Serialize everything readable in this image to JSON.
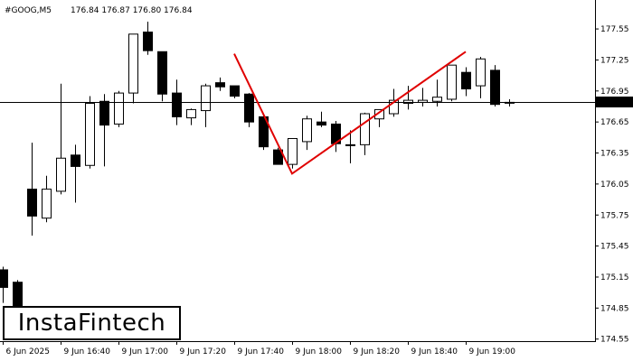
{
  "header": {
    "symbol": "#GOOG,M5",
    "ohlc": "176.84 176.87 176.80 176.84"
  },
  "logo": {
    "text": "InstaFintech"
  },
  "price_marker": "176.84",
  "colors": {
    "pattern_line": "#e00000",
    "bull_fill": "#ffffff",
    "bear_fill": "#000000",
    "candle_stroke": "#000000",
    "marker_bg": "#000000",
    "marker_text": "#ffffff"
  },
  "chart_data": {
    "type": "candlestick",
    "ylim": [
      174.53,
      177.83
    ],
    "y_ticks": [
      "177.55",
      "177.25",
      "176.95",
      "176.65",
      "176.35",
      "176.05",
      "175.75",
      "175.45",
      "175.15",
      "174.85",
      "174.55"
    ],
    "x_tick_labels": [
      "6 Jun 2025",
      "9 Jun 16:40",
      "9 Jun 17:00",
      "9 Jun 17:20",
      "9 Jun 17:40",
      "9 Jun 18:00",
      "9 Jun 18:20",
      "9 Jun 18:40",
      "9 Jun 19:00"
    ],
    "current_price": 176.84,
    "candles": [
      {
        "o": 175.22,
        "h": 175.25,
        "l": 174.9,
        "c": 175.05
      },
      {
        "o": 175.1,
        "h": 175.12,
        "l": 174.78,
        "c": 174.82
      },
      {
        "o": 176.0,
        "h": 176.45,
        "l": 175.55,
        "c": 175.74
      },
      {
        "o": 175.72,
        "h": 176.13,
        "l": 175.68,
        "c": 176.0
      },
      {
        "o": 175.98,
        "h": 177.02,
        "l": 175.95,
        "c": 176.3
      },
      {
        "o": 176.33,
        "h": 176.43,
        "l": 175.87,
        "c": 176.22
      },
      {
        "o": 176.23,
        "h": 176.9,
        "l": 176.2,
        "c": 176.83
      },
      {
        "o": 176.85,
        "h": 176.92,
        "l": 176.22,
        "c": 176.62
      },
      {
        "o": 176.63,
        "h": 176.95,
        "l": 176.6,
        "c": 176.93
      },
      {
        "o": 176.93,
        "h": 177.5,
        "l": 176.83,
        "c": 177.5
      },
      {
        "o": 177.52,
        "h": 177.62,
        "l": 177.3,
        "c": 177.34
      },
      {
        "o": 177.33,
        "h": 177.33,
        "l": 176.85,
        "c": 176.92
      },
      {
        "o": 176.93,
        "h": 177.06,
        "l": 176.62,
        "c": 176.7
      },
      {
        "o": 176.69,
        "h": 176.78,
        "l": 176.62,
        "c": 176.77
      },
      {
        "o": 176.76,
        "h": 177.02,
        "l": 176.6,
        "c": 177.0
      },
      {
        "o": 177.03,
        "h": 177.08,
        "l": 176.95,
        "c": 176.99
      },
      {
        "o": 177.0,
        "h": 177.0,
        "l": 176.88,
        "c": 176.9
      },
      {
        "o": 176.92,
        "h": 176.93,
        "l": 176.6,
        "c": 176.65
      },
      {
        "o": 176.7,
        "h": 176.73,
        "l": 176.38,
        "c": 176.41
      },
      {
        "o": 176.38,
        "h": 176.4,
        "l": 176.24,
        "c": 176.24
      },
      {
        "o": 176.24,
        "h": 176.49,
        "l": 176.2,
        "c": 176.49
      },
      {
        "o": 176.46,
        "h": 176.71,
        "l": 176.38,
        "c": 176.68
      },
      {
        "o": 176.65,
        "h": 176.75,
        "l": 176.6,
        "c": 176.62
      },
      {
        "o": 176.63,
        "h": 176.66,
        "l": 176.36,
        "c": 176.44
      },
      {
        "o": 176.43,
        "h": 176.57,
        "l": 176.25,
        "c": 176.43
      },
      {
        "o": 176.43,
        "h": 176.74,
        "l": 176.33,
        "c": 176.73
      },
      {
        "o": 176.68,
        "h": 176.77,
        "l": 176.6,
        "c": 176.77
      },
      {
        "o": 176.73,
        "h": 176.97,
        "l": 176.7,
        "c": 176.86
      },
      {
        "o": 176.83,
        "h": 177.0,
        "l": 176.77,
        "c": 176.86
      },
      {
        "o": 176.84,
        "h": 176.98,
        "l": 176.8,
        "c": 176.86
      },
      {
        "o": 176.85,
        "h": 177.06,
        "l": 176.8,
        "c": 176.89
      },
      {
        "o": 176.87,
        "h": 177.2,
        "l": 176.85,
        "c": 177.2
      },
      {
        "o": 177.13,
        "h": 177.18,
        "l": 176.9,
        "c": 176.97
      },
      {
        "o": 177.0,
        "h": 177.28,
        "l": 176.88,
        "c": 177.26
      },
      {
        "o": 177.15,
        "h": 177.2,
        "l": 176.8,
        "c": 176.82
      },
      {
        "o": 176.84,
        "h": 176.87,
        "l": 176.8,
        "c": 176.84
      }
    ],
    "pattern_line": [
      {
        "candle": 16,
        "price": 177.31
      },
      {
        "candle": 20,
        "price": 176.15
      },
      {
        "candle": 32,
        "price": 177.33
      }
    ]
  }
}
